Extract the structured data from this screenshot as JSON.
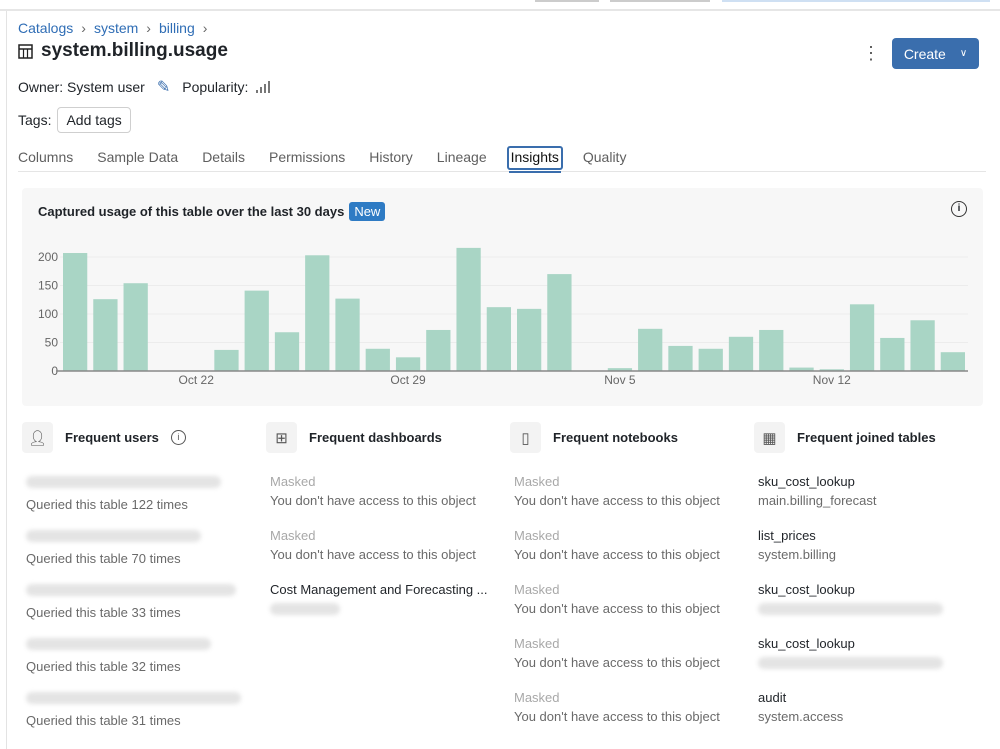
{
  "breadcrumbs": [
    "Catalogs",
    "system",
    "billing"
  ],
  "title": "system.billing.usage",
  "owner_label": "Owner: System user",
  "popularity_label": "Popularity:",
  "tags_label": "Tags:",
  "add_tags": "Add tags",
  "create_label": "Create",
  "tabs": [
    "Columns",
    "Sample Data",
    "Details",
    "Permissions",
    "History",
    "Lineage",
    "Insights",
    "Quality"
  ],
  "active_tab": "Insights",
  "accent_color": "#3a6ead",
  "panel": {
    "title": "Captured usage of this table over the last 30 days",
    "badge": "New"
  },
  "chart_data": {
    "type": "bar",
    "categories": [
      "Oct 18",
      "Oct 19",
      "Oct 20",
      "Oct 21",
      "Oct 22",
      "Oct 23",
      "Oct 24",
      "Oct 25",
      "Oct 26",
      "Oct 27",
      "Oct 28",
      "Oct 29",
      "Oct 30",
      "Oct 31",
      "Nov 1",
      "Nov 2",
      "Nov 3",
      "Nov 4",
      "Nov 5",
      "Nov 6",
      "Nov 7",
      "Nov 8",
      "Nov 9",
      "Nov 10",
      "Nov 11",
      "Nov 12",
      "Nov 13",
      "Nov 14",
      "Nov 15",
      "Nov 16"
    ],
    "values": [
      207,
      126,
      154,
      0,
      0,
      37,
      141,
      68,
      203,
      127,
      39,
      24,
      72,
      216,
      112,
      109,
      170,
      0,
      5,
      74,
      44,
      39,
      60,
      72,
      6,
      3,
      117,
      58,
      89,
      33
    ],
    "x_tick_labels": [
      "Oct 22",
      "Oct 29",
      "Nov 5",
      "Nov 12"
    ],
    "y_tick_labels": [
      "0",
      "50",
      "100",
      "150",
      "200"
    ],
    "ylim": [
      0,
      215
    ],
    "grid": true,
    "bar_color": "#a9d5c5"
  },
  "sections": {
    "users": {
      "title": "Frequent users",
      "items": [
        {
          "sub": "Queried this table 122 times"
        },
        {
          "sub": "Queried this table 70 times"
        },
        {
          "sub": "Queried this table 33 times"
        },
        {
          "sub": "Queried this table 32 times"
        },
        {
          "sub": "Queried this table 31 times"
        }
      ]
    },
    "dashboards": {
      "title": "Frequent dashboards",
      "items": [
        {
          "name": "Masked",
          "sub": "You don't have access to this object"
        },
        {
          "name": "Masked",
          "sub": "You don't have access to this object"
        },
        {
          "name": "Cost Management and Forecasting ..."
        }
      ]
    },
    "notebooks": {
      "title": "Frequent notebooks",
      "items": [
        {
          "name": "Masked",
          "sub": "You don't have access to this object"
        },
        {
          "name": "Masked",
          "sub": "You don't have access to this object"
        },
        {
          "name": "Masked",
          "sub": "You don't have access to this object"
        },
        {
          "name": "Masked",
          "sub": "You don't have access to this object"
        },
        {
          "name": "Masked",
          "sub": "You don't have access to this object"
        }
      ]
    },
    "joined": {
      "title": "Frequent joined tables",
      "items": [
        {
          "name": "sku_cost_lookup",
          "sub": "main.billing_forecast"
        },
        {
          "name": "list_prices",
          "sub": "system.billing"
        },
        {
          "name": "sku_cost_lookup"
        },
        {
          "name": "sku_cost_lookup"
        },
        {
          "name": "audit",
          "sub": "system.access"
        }
      ]
    }
  }
}
